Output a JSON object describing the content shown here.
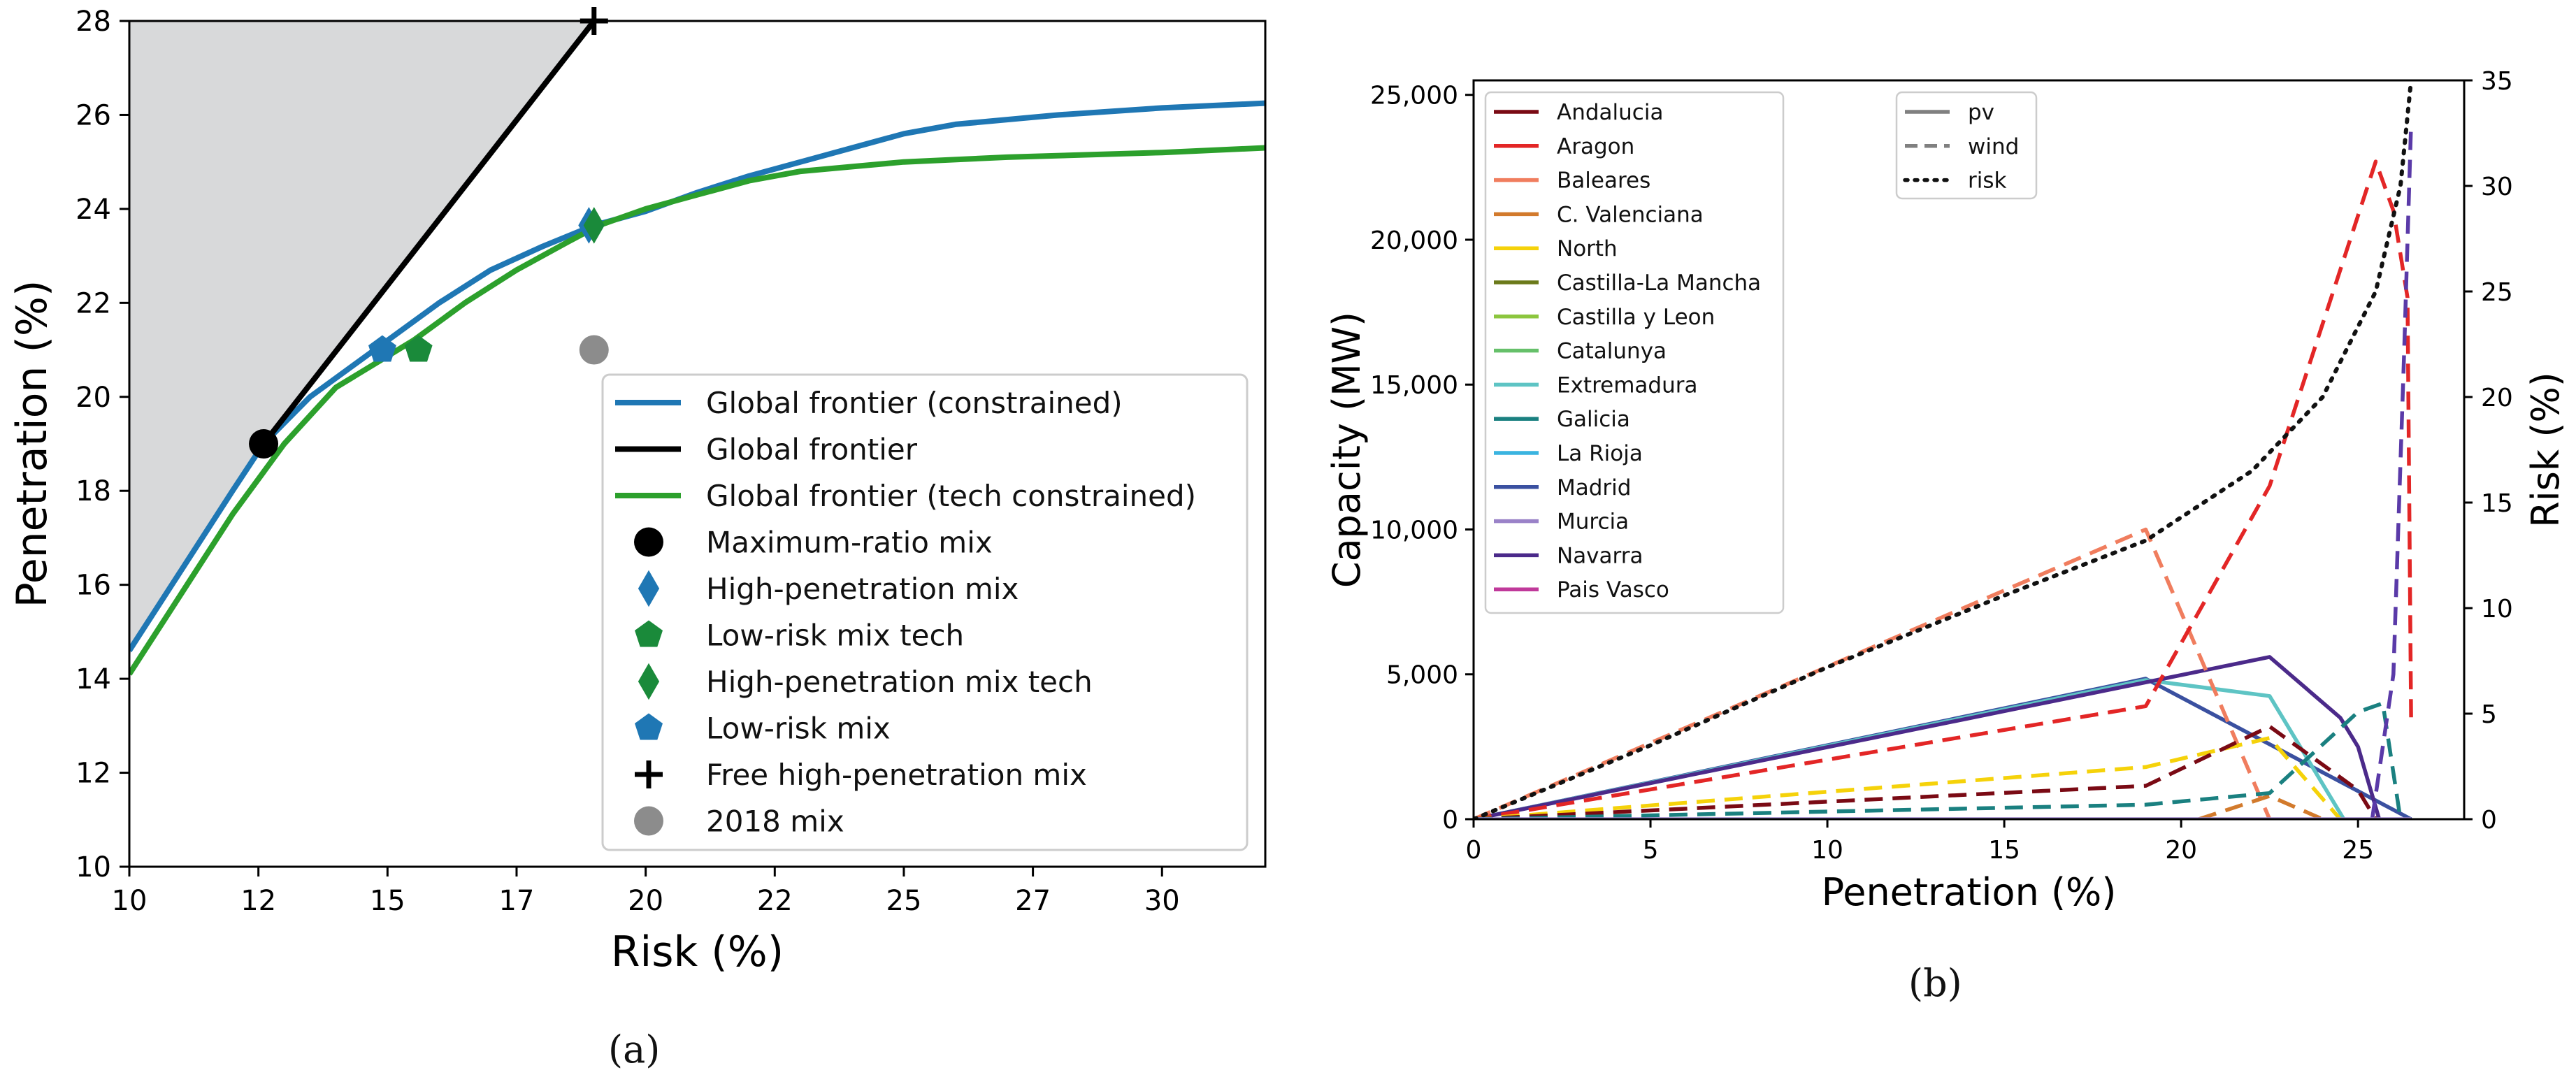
{
  "chart_data": [
    {
      "id": "a",
      "type": "line",
      "caption": "(a)",
      "xlabel": "Risk (%)",
      "ylabel": "Penetration (%)",
      "xlim": [
        10,
        32
      ],
      "ylim": [
        10,
        28
      ],
      "xtick_labels": [
        {
          "v": 10,
          "label": "10"
        },
        {
          "v": 12.5,
          "label": "12"
        },
        {
          "v": 15,
          "label": "15"
        },
        {
          "v": 17.5,
          "label": "17"
        },
        {
          "v": 20,
          "label": "20"
        },
        {
          "v": 22.5,
          "label": "22"
        },
        {
          "v": 25,
          "label": "25"
        },
        {
          "v": 27.5,
          "label": "27"
        },
        {
          "v": 30,
          "label": "30"
        }
      ],
      "yticks": [
        10,
        12,
        14,
        16,
        18,
        20,
        22,
        24,
        26,
        28
      ],
      "shaded_region": {
        "name": "feasible-region",
        "color": "#d8d9da",
        "points": [
          [
            10,
            14.5
          ],
          [
            12.6,
            19.0
          ],
          [
            19.0,
            28.0
          ],
          [
            10,
            28.0
          ]
        ]
      },
      "series": [
        {
          "name": "Global frontier (constrained)",
          "color": "#1f77b4",
          "style": "solid",
          "points": [
            [
              10,
              14.6
            ],
            [
              11,
              16.3
            ],
            [
              12,
              18.0
            ],
            [
              12.6,
              19.0
            ],
            [
              13.5,
              20.0
            ],
            [
              15,
              21.2
            ],
            [
              16,
              22.0
            ],
            [
              17,
              22.7
            ],
            [
              18,
              23.2
            ],
            [
              19,
              23.65
            ],
            [
              20,
              23.95
            ],
            [
              21,
              24.35
            ],
            [
              22,
              24.7
            ],
            [
              23,
              25.0
            ],
            [
              24,
              25.3
            ],
            [
              25,
              25.6
            ],
            [
              26,
              25.8
            ],
            [
              28,
              26.0
            ],
            [
              30,
              26.15
            ],
            [
              32,
              26.25
            ]
          ]
        },
        {
          "name": "Global frontier",
          "color": "#000000",
          "style": "solid",
          "points": [
            [
              12.6,
              19.0
            ],
            [
              19.0,
              28.0
            ]
          ]
        },
        {
          "name": "Global frontier (tech constrained)",
          "color": "#2ca02c",
          "style": "solid",
          "points": [
            [
              10,
              14.1
            ],
            [
              11,
              15.8
            ],
            [
              12,
              17.5
            ],
            [
              13,
              19.0
            ],
            [
              14,
              20.2
            ],
            [
              15.5,
              21.2
            ],
            [
              16.5,
              22.0
            ],
            [
              17.5,
              22.7
            ],
            [
              18.5,
              23.3
            ],
            [
              19.1,
              23.65
            ],
            [
              20,
              24.0
            ],
            [
              21,
              24.3
            ],
            [
              22,
              24.6
            ],
            [
              23,
              24.8
            ],
            [
              24,
              24.9
            ],
            [
              25,
              25.0
            ],
            [
              27,
              25.1
            ],
            [
              30,
              25.2
            ],
            [
              32,
              25.3
            ]
          ]
        }
      ],
      "markers": [
        {
          "name": "Maximum-ratio mix",
          "marker": "circle",
          "color": "#000000",
          "x": 12.6,
          "y": 19.0
        },
        {
          "name": "High-penetration mix",
          "marker": "diamond",
          "color": "#1f77b4",
          "x": 18.9,
          "y": 23.65
        },
        {
          "name": "Low-risk mix tech",
          "marker": "pentagon",
          "color": "#1a8a3a",
          "x": 15.6,
          "y": 21.0
        },
        {
          "name": "High-penetration mix tech",
          "marker": "diamond",
          "color": "#1a8a3a",
          "x": 19.0,
          "y": 23.65
        },
        {
          "name": "Low-risk mix",
          "marker": "pentagon",
          "color": "#1f77b4",
          "x": 14.9,
          "y": 21.0
        },
        {
          "name": "Free high-penetration mix",
          "marker": "plus",
          "color": "#000000",
          "x": 19.0,
          "y": 28.0
        },
        {
          "name": "2018 mix",
          "marker": "circle",
          "color": "#8c8c8c",
          "x": 19.0,
          "y": 21.0
        }
      ],
      "legend": {
        "placement": "lower-right",
        "entries": [
          {
            "label": "Global frontier (constrained)",
            "kind": "line",
            "color": "#1f77b4"
          },
          {
            "label": "Global frontier",
            "kind": "line",
            "color": "#000000"
          },
          {
            "label": "Global frontier (tech constrained)",
            "kind": "line",
            "color": "#2ca02c"
          },
          {
            "label": "Maximum-ratio mix",
            "kind": "circle",
            "color": "#000000"
          },
          {
            "label": "High-penetration mix",
            "kind": "diamond",
            "color": "#1f77b4"
          },
          {
            "label": "Low-risk mix tech",
            "kind": "pentagon",
            "color": "#1a8a3a"
          },
          {
            "label": "High-penetration mix tech",
            "kind": "diamond",
            "color": "#1a8a3a"
          },
          {
            "label": "Low-risk mix",
            "kind": "pentagon",
            "color": "#1f77b4"
          },
          {
            "label": "Free high-penetration mix",
            "kind": "plus",
            "color": "#000000"
          },
          {
            "label": "2018 mix",
            "kind": "circle",
            "color": "#8c8c8c"
          }
        ]
      }
    },
    {
      "id": "b",
      "type": "line",
      "caption": "(b)",
      "xlabel": "Penetration (%)",
      "ylabel": "Capacity (MW)",
      "y2label": "Risk (%)",
      "xlim": [
        0,
        28
      ],
      "ylim": [
        0,
        25500
      ],
      "y2lim": [
        0,
        35
      ],
      "xticks": [
        0,
        5,
        10,
        15,
        20,
        25
      ],
      "yticks": [
        0,
        5000,
        10000,
        15000,
        20000,
        25000
      ],
      "ytick_labels": [
        "0",
        "5,000",
        "10,000",
        "15,000",
        "20,000",
        "25,000"
      ],
      "y2ticks": [
        0,
        5,
        10,
        15,
        20,
        25,
        30,
        35
      ],
      "series": [
        {
          "name": "Madrid pv",
          "color": "#3a50a0",
          "style": "solid",
          "axis": "left",
          "points": [
            [
              0,
              0
            ],
            [
              19,
              4850
            ],
            [
              26.5,
              0
            ]
          ]
        },
        {
          "name": "Extremadura pv",
          "color": "#5ec4c4",
          "style": "solid",
          "axis": "left",
          "points": [
            [
              0,
              0
            ],
            [
              19,
              4800
            ],
            [
              22.5,
              4250
            ],
            [
              24.6,
              0
            ]
          ]
        },
        {
          "name": "Navarra pv",
          "color": "#4b2a8a",
          "style": "solid",
          "axis": "left",
          "points": [
            [
              0,
              0
            ],
            [
              19.5,
              4850
            ],
            [
              22.5,
              5600
            ],
            [
              24.5,
              3500
            ],
            [
              25,
              2500
            ],
            [
              25.6,
              0
            ]
          ]
        },
        {
          "name": "Baleares wind",
          "color": "#f07d5e",
          "style": "dashed",
          "axis": "left",
          "points": [
            [
              0,
              0
            ],
            [
              19,
              10000
            ],
            [
              22.5,
              0
            ]
          ]
        },
        {
          "name": "Aragon wind",
          "color": "#e32626",
          "style": "dashed",
          "axis": "left",
          "points": [
            [
              0,
              0
            ],
            [
              19,
              3900
            ],
            [
              22.5,
              11500
            ],
            [
              25.5,
              22700
            ],
            [
              26,
              21000
            ],
            [
              26.4,
              18000
            ],
            [
              26.5,
              3500
            ]
          ]
        },
        {
          "name": "North wind",
          "color": "#f5d20a",
          "style": "dashed",
          "axis": "left",
          "points": [
            [
              0,
              0
            ],
            [
              19,
              1800
            ],
            [
              22.5,
              2800
            ],
            [
              24.5,
              0
            ]
          ]
        },
        {
          "name": "Andalucia wind",
          "color": "#7a0a14",
          "style": "dashed",
          "axis": "left",
          "points": [
            [
              0,
              0
            ],
            [
              19,
              1150
            ],
            [
              22.5,
              3200
            ],
            [
              25,
              1000
            ],
            [
              25.5,
              0
            ]
          ]
        },
        {
          "name": "C. Valenciana wind",
          "color": "#d27a2c",
          "style": "dashed",
          "axis": "left",
          "points": [
            [
              20.5,
              0
            ],
            [
              22.5,
              800
            ],
            [
              24,
              0
            ]
          ]
        },
        {
          "name": "Galicia wind",
          "color": "#1a8080",
          "style": "dashed",
          "axis": "left",
          "points": [
            [
              0,
              0
            ],
            [
              19,
              500
            ],
            [
              22.5,
              900
            ],
            [
              25,
              3700
            ],
            [
              25.7,
              4000
            ],
            [
              26.2,
              0
            ]
          ]
        },
        {
          "name": "Navarra wind",
          "color": "#5a3aa8",
          "style": "dashed",
          "axis": "left",
          "points": [
            [
              25.4,
              0
            ],
            [
              26,
              5000
            ],
            [
              26.3,
              16000
            ],
            [
              26.5,
              24000
            ]
          ]
        },
        {
          "name": "Murcia pv",
          "color": "#9a82c8",
          "style": "solid",
          "axis": "left",
          "points": [
            [
              0,
              0
            ],
            [
              26.5,
              0
            ]
          ]
        },
        {
          "name": "risk",
          "color": "#111111",
          "style": "dotted",
          "axis": "right",
          "points": [
            [
              0,
              0
            ],
            [
              5,
              3.5
            ],
            [
              10,
              7.2
            ],
            [
              15,
              10.6
            ],
            [
              19,
              13.2
            ],
            [
              22,
              16.5
            ],
            [
              24,
              20
            ],
            [
              25.5,
              25
            ],
            [
              26.2,
              30
            ],
            [
              26.5,
              35
            ]
          ]
        }
      ],
      "legend_regions": {
        "placement": "upper-left",
        "entries": [
          {
            "label": "Andalucia",
            "color": "#7a0a14"
          },
          {
            "label": "Aragon",
            "color": "#e32626"
          },
          {
            "label": "Baleares",
            "color": "#f07d5e"
          },
          {
            "label": "C. Valenciana",
            "color": "#d27a2c"
          },
          {
            "label": "North",
            "color": "#f5d20a"
          },
          {
            "label": "Castilla-La Mancha",
            "color": "#6b7a1a"
          },
          {
            "label": "Castilla y Leon",
            "color": "#8cc63e"
          },
          {
            "label": "Catalunya",
            "color": "#66c06a"
          },
          {
            "label": "Extremadura",
            "color": "#5ec4c4"
          },
          {
            "label": "Galicia",
            "color": "#1a8080"
          },
          {
            "label": "La Rioja",
            "color": "#3ab4e0"
          },
          {
            "label": "Madrid",
            "color": "#3a50a0"
          },
          {
            "label": "Murcia",
            "color": "#9a82c8"
          },
          {
            "label": "Navarra",
            "color": "#4b2a8a"
          },
          {
            "label": "Pais Vasco",
            "color": "#c0399a"
          }
        ]
      },
      "legend_styles": {
        "placement": "upper-center",
        "entries": [
          {
            "label": "pv",
            "style": "solid",
            "color": "#808080"
          },
          {
            "label": "wind",
            "style": "dashed",
            "color": "#808080"
          },
          {
            "label": "risk",
            "style": "dotted",
            "color": "#111111"
          }
        ]
      }
    }
  ]
}
